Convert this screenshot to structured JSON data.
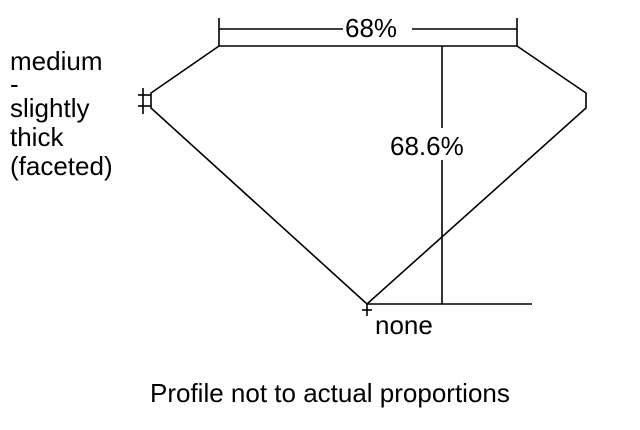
{
  "girdle_label": [
    "medium",
    "-",
    "slightly",
    "thick",
    "(faceted)"
  ],
  "table_label": "68%",
  "depth_label": "68.6%",
  "culet_label": "none",
  "footnote": "Profile not to actual proportions"
}
